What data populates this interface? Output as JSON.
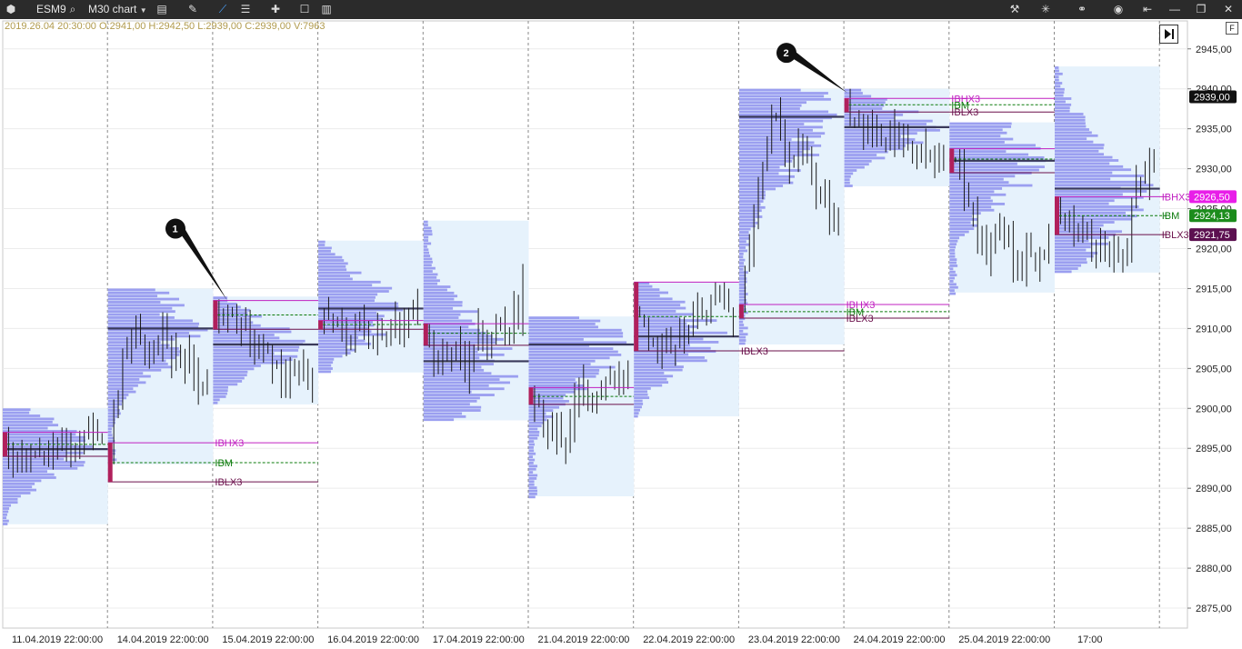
{
  "toolbar": {
    "symbol": "ESM9",
    "timeframe": "M30 chart",
    "icons": [
      "app-logo-icon",
      "search-icon",
      "chart-settings-icon",
      "drawing-tools-icon",
      "indicators-icon",
      "templates-icon",
      "add-icon",
      "window-icon",
      "layout-icon",
      "settings-icon",
      "crosshair-icon",
      "link-icon",
      "camera-icon",
      "back-icon",
      "minimize-icon",
      "restore-icon",
      "close-icon"
    ]
  },
  "ohlc_info": "2019.26.04 20:30:00 O:2941,00 H:2942,50 L:2939,00 C:2939,00 V:7963",
  "f_label": "F",
  "colors": {
    "profile_bg": "#e6f2fc",
    "profile_bar": "#9b9ff0",
    "ib_high": "#c020c0",
    "ib_mid": "#0a7a0a",
    "ib_low": "#6a0f4a",
    "ib_bar": "#b0205c",
    "candles": "#1a1a1a"
  },
  "chart_data": {
    "type": "market-profile-candlestick",
    "instrument": "ESM9",
    "timeframe": "M30",
    "y_axis": {
      "min": 2872.5,
      "max": 2948.5,
      "ticks": [
        2875,
        2880,
        2885,
        2890,
        2895,
        2900,
        2905,
        2910,
        2915,
        2920,
        2925,
        2930,
        2935,
        2940,
        2945
      ]
    },
    "y_tick_labels": [
      "2875,00",
      "2880,00",
      "2885,00",
      "2890,00",
      "2895,00",
      "2900,00",
      "2905,00",
      "2910,00",
      "2915,00",
      "2920,00",
      "2925,00",
      "2930,00",
      "2935,00",
      "2940,00",
      "2945,00"
    ],
    "x_labels": [
      "11.04.2019 22:00:00",
      "14.04.2019 22:00:00",
      "15.04.2019 22:00:00",
      "16.04.2019 22:00:00",
      "17.04.2019 22:00:00",
      "21.04.2019 22:00:00",
      "22.04.2019 22:00:00",
      "23.04.2019 22:00:00",
      "24.04.2019 22:00:00",
      "25.04.2019 22:00:00",
      "17:00"
    ],
    "price_labels": [
      {
        "value": 2939.0,
        "text": "2939,00",
        "bg": "#111111",
        "fg": "#ffffff"
      },
      {
        "value": 2926.5,
        "text": "2926,50",
        "bg": "#e81ee8",
        "fg": "#ffffff"
      },
      {
        "value": 2924.13,
        "text": "2924,13",
        "bg": "#1c8c1c",
        "fg": "#ffffff"
      },
      {
        "value": 2921.75,
        "text": "2921,75",
        "bg": "#5c1050",
        "fg": "#ffffff"
      }
    ],
    "ib_labels": {
      "high": "IBHX3",
      "mid": "IBM",
      "low": "IBLX3"
    },
    "sessions": [
      {
        "low": 2885.5,
        "high": 2900.0,
        "poc": 2894.9,
        "ibh": 2897.0,
        "ibl": 2894.0,
        "ibm": 2895.5
      },
      {
        "low": 2893.0,
        "high": 2915.0,
        "poc": 2910.0,
        "ibh": 2895.7,
        "ibl": 2890.8,
        "ibm": 2893.2
      },
      {
        "low": 2900.5,
        "high": 2914.0,
        "poc": 2908.0,
        "ibh": 2913.5,
        "ibl": 2909.9,
        "ibm": 2911.7
      },
      {
        "low": 2904.5,
        "high": 2921.0,
        "poc": 2912.5,
        "ibh": 2911.0,
        "ibl": 2909.9,
        "ibm": 2910.5
      },
      {
        "low": 2898.5,
        "high": 2923.5,
        "poc": 2905.9,
        "ibh": 2910.6,
        "ibl": 2907.9,
        "ibm": 2909.4
      },
      {
        "low": 2889.0,
        "high": 2911.5,
        "poc": 2908.0,
        "ibh": 2902.6,
        "ibl": 2900.5,
        "ibm": 2901.5
      },
      {
        "low": 2899.0,
        "high": 2915.8,
        "poc": 2909.0,
        "ibh": 2915.8,
        "ibl": 2907.2,
        "ibm": 2911.5
      },
      {
        "low": 2908.0,
        "high": 2940.0,
        "poc": 2936.5,
        "ibh": 2913.0,
        "ibl": 2911.3,
        "ibm": 2912.1
      },
      {
        "low": 2927.8,
        "high": 2940.0,
        "poc": 2935.2,
        "ibh": 2938.8,
        "ibl": 2937.1,
        "ibm": 2938.0
      },
      {
        "low": 2914.5,
        "high": 2935.8,
        "poc": 2931.0,
        "ibh": 2932.5,
        "ibl": 2929.5,
        "ibm": 2931.2
      },
      {
        "low": 2917.0,
        "high": 2942.8,
        "poc": 2927.5,
        "ibh": 2926.5,
        "ibl": 2921.75,
        "ibm": 2924.13
      }
    ],
    "annotations": [
      {
        "label": "1",
        "value": 2922.5,
        "target_value": 2913.5
      },
      {
        "label": "2",
        "value": 2944.5,
        "target_value": 2939.5
      }
    ]
  }
}
